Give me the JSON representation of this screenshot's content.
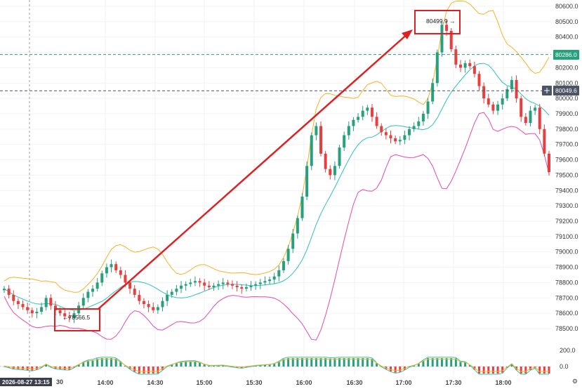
{
  "chart_data": {
    "type": "candlestick",
    "price_axis_ticks": [
      "80600.0",
      "80500.0",
      "80400.0",
      "80300.0",
      "80200.0",
      "80100.0",
      "80000.0",
      "79900.0",
      "79800.0",
      "79700.0",
      "79600.0",
      "79500.0",
      "79400.0",
      "79300.0",
      "79200.0",
      "79100.0",
      "79000.0",
      "78900.0",
      "78800.0",
      "78700.0",
      "78600.0",
      "78500.0"
    ],
    "price_axis_values": [
      80600,
      80500,
      80400,
      80300,
      80200,
      80100,
      80000,
      79900,
      79800,
      79700,
      79600,
      79500,
      79400,
      79300,
      79200,
      79100,
      79000,
      78900,
      78800,
      78700,
      78600,
      78500
    ],
    "time_axis_ticks": [
      "14:00",
      "14:30",
      "15:00",
      "15:30",
      "16:00",
      "16:30",
      "17:00",
      "17:30",
      "18:00"
    ],
    "crosshair_time": "2026-08-27 13:15",
    "crosshair_partial_label": "30",
    "horizontal_lines": [
      {
        "value": 80286.0,
        "label": "80286.0",
        "color": "#26a17b"
      },
      {
        "value": 80049.6,
        "label": "80049.6",
        "color": "#4d5466"
      }
    ],
    "annotations": {
      "low": {
        "label": "78566.5",
        "arrow": "←"
      },
      "high": {
        "label": "80499.9",
        "arrow": "→"
      }
    },
    "oscillator_axis_ticks": [
      "200.0",
      "0.0"
    ],
    "oscillator_axis_values": [
      200,
      0
    ],
    "price_range": [
      78440,
      80650
    ],
    "close_series": [
      78760,
      78720,
      78680,
      78660,
      78640,
      78620,
      78600,
      78610,
      78640,
      78700,
      78650,
      78620,
      78600,
      78580,
      78570,
      78600,
      78650,
      78700,
      78740,
      78760,
      78800,
      78860,
      78900,
      78920,
      78880,
      78850,
      78800,
      78760,
      78720,
      78680,
      78660,
      78640,
      78620,
      78640,
      78680,
      78720,
      78740,
      78760,
      78780,
      78790,
      78800,
      78810,
      78800,
      78780,
      78770,
      78780,
      78790,
      78800,
      78790,
      78780,
      78770,
      78760,
      78770,
      78780,
      78790,
      78800,
      78810,
      78820,
      78840,
      78880,
      78940,
      79020,
      79120,
      79220,
      79360,
      79560,
      79760,
      79820,
      79640,
      79540,
      79500,
      79560,
      79680,
      79760,
      79820,
      79860,
      79880,
      79920,
      79940,
      79880,
      79820,
      79780,
      79760,
      79740,
      79720,
      79730,
      79760,
      79800,
      79820,
      79850,
      79900,
      79980,
      80100,
      80300,
      80480,
      80440,
      80320,
      80220,
      80200,
      80230,
      80210,
      80160,
      80080,
      80000,
      79960,
      79920,
      79960,
      80000,
      80060,
      80120,
      80000,
      79880,
      79840,
      79920,
      79940,
      79800,
      79640,
      79520
    ],
    "colors": {
      "up": "#26a17b",
      "down": "#e5403f",
      "upper_band": "#f5b324",
      "lower_band": "#e54ba6",
      "mid_band": "#31c2b6",
      "arrow": "#e02020"
    }
  }
}
